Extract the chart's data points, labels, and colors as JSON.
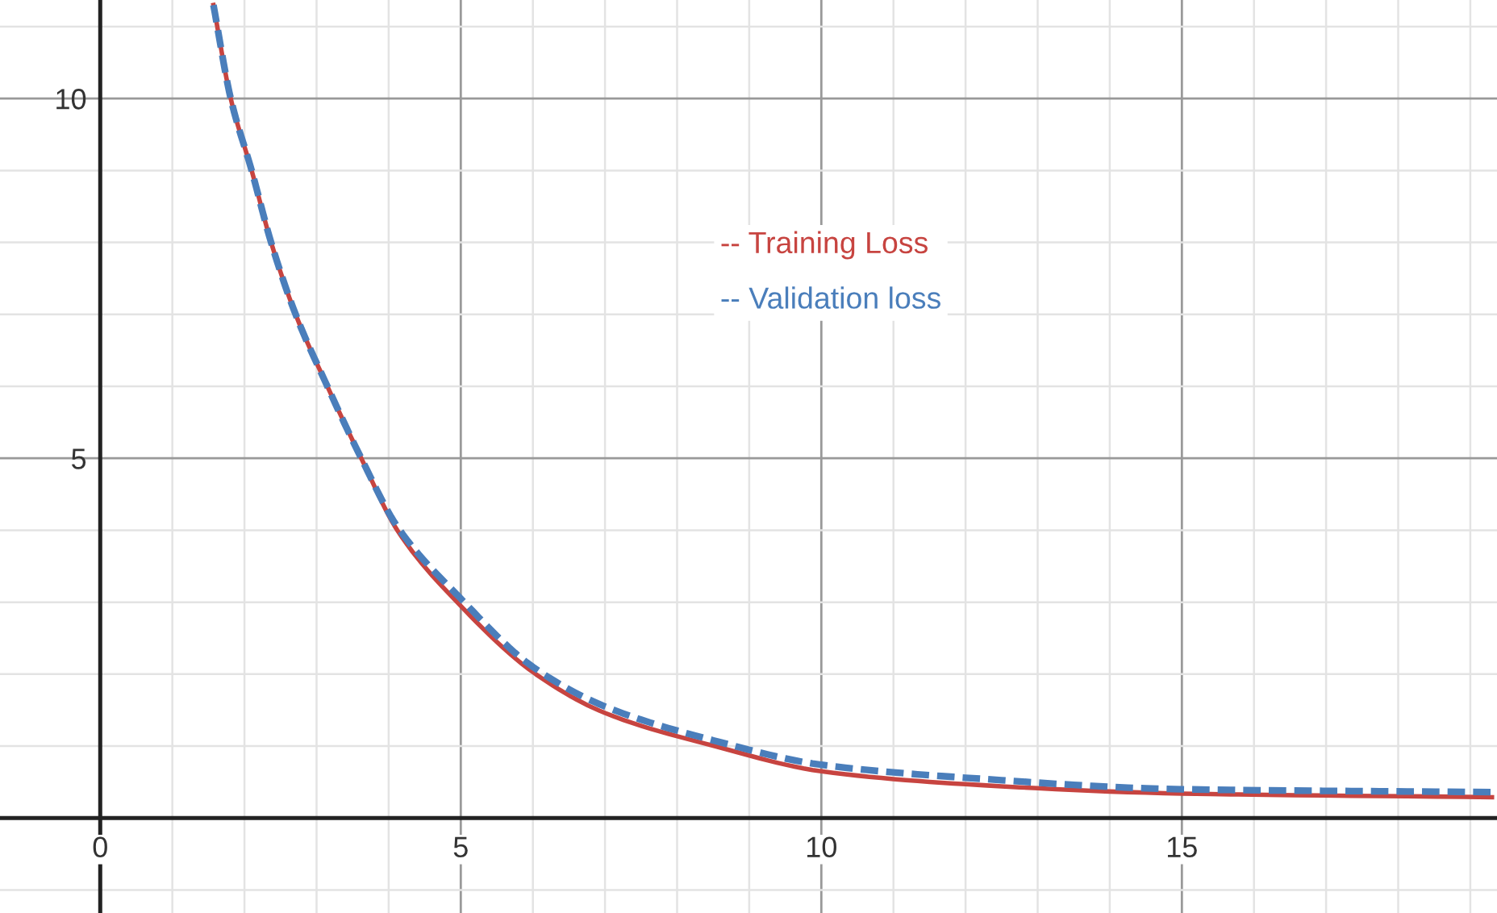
{
  "chart_data": {
    "type": "line",
    "xlim": [
      -1.39,
      19.37
    ],
    "ylim": [
      -1.32,
      11.37
    ],
    "xticks": [
      0,
      {
        "value": 1,
        "label": null
      },
      {
        "value": 2,
        "label": null
      },
      {
        "value": 3,
        "label": null
      },
      {
        "value": 4,
        "label": null
      },
      5,
      {
        "value": 6,
        "label": null
      },
      {
        "value": 7,
        "label": null
      },
      {
        "value": 8,
        "label": null
      },
      {
        "value": 9,
        "label": null
      },
      10,
      {
        "value": 11,
        "label": null
      },
      {
        "value": 12,
        "label": null
      },
      {
        "value": 13,
        "label": null
      },
      {
        "value": 14,
        "label": null
      },
      15,
      {
        "value": 16,
        "label": null
      },
      {
        "value": 17,
        "label": null
      },
      {
        "value": 18,
        "label": null
      },
      {
        "value": 19,
        "label": null
      }
    ],
    "yticks": [
      {
        "value": -1,
        "label": null
      },
      {
        "value": 1,
        "label": null
      },
      {
        "value": 2,
        "label": null
      },
      {
        "value": 3,
        "label": null
      },
      {
        "value": 4,
        "label": null
      },
      5,
      {
        "value": 6,
        "label": null
      },
      {
        "value": 7,
        "label": null
      },
      {
        "value": 8,
        "label": null
      },
      {
        "value": 9,
        "label": null
      },
      10,
      {
        "value": 11,
        "label": null
      }
    ],
    "grid": true,
    "legend": "top",
    "marker": "none",
    "series": [
      {
        "name": "-- Training Loss",
        "color": "#c74440",
        "line_style": "solid",
        "x": [
          1.57,
          1.81,
          2.1,
          2.37,
          2.71,
          3.15,
          3.62,
          4.12,
          4.95,
          6.04,
          7,
          8.52,
          10,
          12,
          15,
          19.3
        ],
        "values": [
          11.3,
          10,
          9,
          8,
          7,
          6,
          5,
          4,
          3,
          2,
          1.46,
          1,
          0.65,
          0.47,
          0.34,
          0.29
        ]
      },
      {
        "name": "-- Validation loss",
        "color": "#4a7ebb",
        "line_style": "dashed",
        "x": [
          1.57,
          1.81,
          2.1,
          2.37,
          2.71,
          3.15,
          3.62,
          4.12,
          5,
          6,
          7,
          8.5,
          10,
          12,
          15,
          19.3
        ],
        "values": [
          11.3,
          10,
          9,
          8,
          7,
          6,
          5,
          4.05,
          3.05,
          2.1,
          1.55,
          1.08,
          0.74,
          0.56,
          0.4,
          0.36
        ]
      }
    ]
  }
}
